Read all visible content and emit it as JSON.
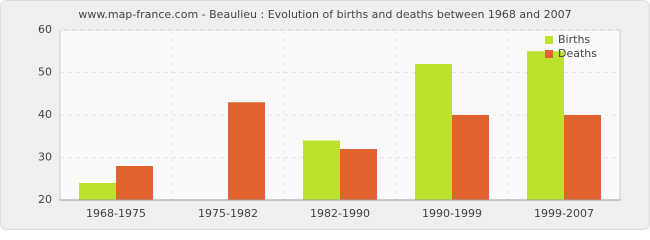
{
  "chart_data": {
    "type": "bar",
    "title": "www.map-france.com - Beaulieu : Evolution of births and deaths between 1968 and 2007",
    "categories": [
      "1968-1975",
      "1975-1982",
      "1982-1990",
      "1990-1999",
      "1999-2007"
    ],
    "series": [
      {
        "name": "Births",
        "color": "#bde22e",
        "values": [
          24,
          20,
          34,
          52,
          55
        ]
      },
      {
        "name": "Deaths",
        "color": "#e0622f",
        "values": [
          28,
          43,
          32,
          40,
          40
        ]
      }
    ],
    "ylim": [
      20,
      60
    ],
    "yticks": [
      20,
      30,
      40,
      50,
      60
    ],
    "grid": true,
    "legend": "top-right"
  }
}
